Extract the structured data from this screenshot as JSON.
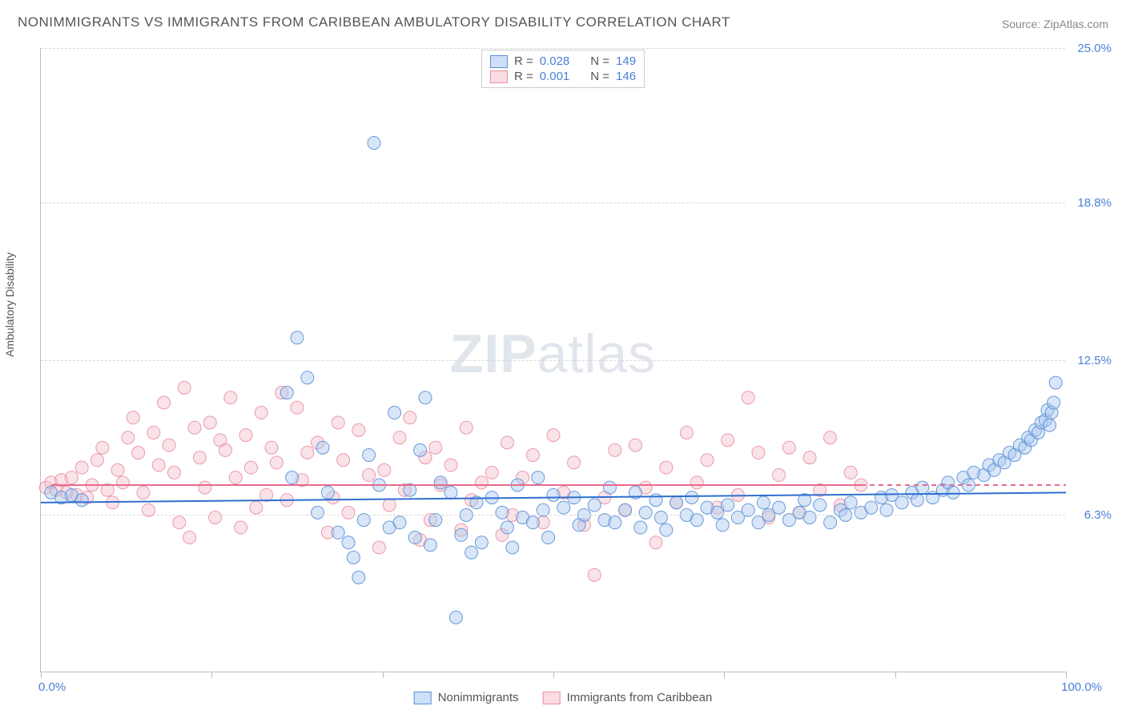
{
  "title": "NONIMMIGRANTS VS IMMIGRANTS FROM CARIBBEAN AMBULATORY DISABILITY CORRELATION CHART",
  "source": "Source: ZipAtlas.com",
  "ylabel": "Ambulatory Disability",
  "watermark_bold": "ZIP",
  "watermark_rest": "atlas",
  "chart": {
    "type": "scatter",
    "xlim": [
      0,
      100
    ],
    "ylim": [
      0,
      25
    ],
    "x_ticks": [
      0,
      16.67,
      33.33,
      50,
      66.67,
      83.33,
      100
    ],
    "y_grid": [
      6.3,
      12.5,
      18.8,
      25.0
    ],
    "y_tick_labels": [
      "6.3%",
      "12.5%",
      "18.8%",
      "25.0%"
    ],
    "x_min_label": "0.0%",
    "x_max_label": "100.0%",
    "grid_color": "#d8d8d8",
    "axis_color": "#bbbbbb",
    "background_color": "#ffffff",
    "marker_radius": 8,
    "marker_opacity": 0.45,
    "line_width": 2,
    "series": [
      {
        "name": "Nonimmigrants",
        "fill_color": "#a8c8f0",
        "stroke_color": "#5b8fd6",
        "legend_swatch_fill": "#cde0f7",
        "trend": {
          "y_start": 6.8,
          "y_end": 7.2,
          "x_start": 0,
          "x_end": 100,
          "color": "#2f6fd0",
          "dash": "none"
        },
        "R": "0.028",
        "N": "149",
        "points": [
          [
            1,
            7.2
          ],
          [
            2,
            7.0
          ],
          [
            3,
            7.1
          ],
          [
            4,
            6.9
          ],
          [
            24,
            11.2
          ],
          [
            24.5,
            7.8
          ],
          [
            25,
            13.4
          ],
          [
            26,
            11.8
          ],
          [
            27,
            6.4
          ],
          [
            27.5,
            9.0
          ],
          [
            28,
            7.2
          ],
          [
            29,
            5.6
          ],
          [
            30,
            5.2
          ],
          [
            30.5,
            4.6
          ],
          [
            31,
            3.8
          ],
          [
            31.5,
            6.1
          ],
          [
            32,
            8.7
          ],
          [
            32.5,
            21.2
          ],
          [
            33,
            7.5
          ],
          [
            34,
            5.8
          ],
          [
            34.5,
            10.4
          ],
          [
            35,
            6.0
          ],
          [
            36,
            7.3
          ],
          [
            36.5,
            5.4
          ],
          [
            37,
            8.9
          ],
          [
            37.5,
            11.0
          ],
          [
            38,
            5.1
          ],
          [
            38.5,
            6.1
          ],
          [
            39,
            7.6
          ],
          [
            40,
            7.2
          ],
          [
            40.5,
            2.2
          ],
          [
            41,
            5.5
          ],
          [
            41.5,
            6.3
          ],
          [
            42,
            4.8
          ],
          [
            42.5,
            6.8
          ],
          [
            43,
            5.2
          ],
          [
            44,
            7.0
          ],
          [
            45,
            6.4
          ],
          [
            45.5,
            5.8
          ],
          [
            46,
            5.0
          ],
          [
            46.5,
            7.5
          ],
          [
            47,
            6.2
          ],
          [
            48,
            6.0
          ],
          [
            48.5,
            7.8
          ],
          [
            49,
            6.5
          ],
          [
            49.5,
            5.4
          ],
          [
            50,
            7.1
          ],
          [
            51,
            6.6
          ],
          [
            52,
            7.0
          ],
          [
            52.5,
            5.9
          ],
          [
            53,
            6.3
          ],
          [
            54,
            6.7
          ],
          [
            55,
            6.1
          ],
          [
            55.5,
            7.4
          ],
          [
            56,
            6.0
          ],
          [
            57,
            6.5
          ],
          [
            58,
            7.2
          ],
          [
            58.5,
            5.8
          ],
          [
            59,
            6.4
          ],
          [
            60,
            6.9
          ],
          [
            60.5,
            6.2
          ],
          [
            61,
            5.7
          ],
          [
            62,
            6.8
          ],
          [
            63,
            6.3
          ],
          [
            63.5,
            7.0
          ],
          [
            64,
            6.1
          ],
          [
            65,
            6.6
          ],
          [
            66,
            6.4
          ],
          [
            66.5,
            5.9
          ],
          [
            67,
            6.7
          ],
          [
            68,
            6.2
          ],
          [
            69,
            6.5
          ],
          [
            70,
            6.0
          ],
          [
            70.5,
            6.8
          ],
          [
            71,
            6.3
          ],
          [
            72,
            6.6
          ],
          [
            73,
            6.1
          ],
          [
            74,
            6.4
          ],
          [
            74.5,
            6.9
          ],
          [
            75,
            6.2
          ],
          [
            76,
            6.7
          ],
          [
            77,
            6.0
          ],
          [
            78,
            6.5
          ],
          [
            78.5,
            6.3
          ],
          [
            79,
            6.8
          ],
          [
            80,
            6.4
          ],
          [
            81,
            6.6
          ],
          [
            82,
            7.0
          ],
          [
            82.5,
            6.5
          ],
          [
            83,
            7.1
          ],
          [
            84,
            6.8
          ],
          [
            85,
            7.2
          ],
          [
            85.5,
            6.9
          ],
          [
            86,
            7.4
          ],
          [
            87,
            7.0
          ],
          [
            88,
            7.3
          ],
          [
            88.5,
            7.6
          ],
          [
            89,
            7.2
          ],
          [
            90,
            7.8
          ],
          [
            90.5,
            7.5
          ],
          [
            91,
            8.0
          ],
          [
            92,
            7.9
          ],
          [
            92.5,
            8.3
          ],
          [
            93,
            8.1
          ],
          [
            93.5,
            8.5
          ],
          [
            94,
            8.4
          ],
          [
            94.5,
            8.8
          ],
          [
            95,
            8.7
          ],
          [
            95.5,
            9.1
          ],
          [
            96,
            9.0
          ],
          [
            96.3,
            9.4
          ],
          [
            96.6,
            9.3
          ],
          [
            97,
            9.7
          ],
          [
            97.3,
            9.6
          ],
          [
            97.6,
            10.0
          ],
          [
            98,
            10.1
          ],
          [
            98.2,
            10.5
          ],
          [
            98.4,
            9.9
          ],
          [
            98.6,
            10.4
          ],
          [
            98.8,
            10.8
          ],
          [
            99,
            11.6
          ]
        ]
      },
      {
        "name": "Immigrants from Caribbean",
        "fill_color": "#f5c2cc",
        "stroke_color": "#e88fa3",
        "legend_swatch_fill": "#fadce2",
        "trend_solid": {
          "y_start": 7.5,
          "y_end": 7.5,
          "x_start": 1,
          "x_end": 80,
          "color": "#e86a8c"
        },
        "trend_dashed": {
          "y_start": 7.5,
          "y_end": 7.5,
          "x_start": 80,
          "x_end": 100,
          "color": "#e86a8c"
        },
        "R": "0.001",
        "N": "146",
        "points": [
          [
            0.5,
            7.4
          ],
          [
            1,
            7.6
          ],
          [
            1.5,
            7.3
          ],
          [
            2,
            7.7
          ],
          [
            2.5,
            7.2
          ],
          [
            3,
            7.8
          ],
          [
            3.5,
            7.1
          ],
          [
            4,
            8.2
          ],
          [
            4.5,
            7.0
          ],
          [
            5,
            7.5
          ],
          [
            5.5,
            8.5
          ],
          [
            6,
            9.0
          ],
          [
            6.5,
            7.3
          ],
          [
            7,
            6.8
          ],
          [
            7.5,
            8.1
          ],
          [
            8,
            7.6
          ],
          [
            8.5,
            9.4
          ],
          [
            9,
            10.2
          ],
          [
            9.5,
            8.8
          ],
          [
            10,
            7.2
          ],
          [
            10.5,
            6.5
          ],
          [
            11,
            9.6
          ],
          [
            11.5,
            8.3
          ],
          [
            12,
            10.8
          ],
          [
            12.5,
            9.1
          ],
          [
            13,
            8.0
          ],
          [
            13.5,
            6.0
          ],
          [
            14,
            11.4
          ],
          [
            14.5,
            5.4
          ],
          [
            15,
            9.8
          ],
          [
            15.5,
            8.6
          ],
          [
            16,
            7.4
          ],
          [
            16.5,
            10.0
          ],
          [
            17,
            6.2
          ],
          [
            17.5,
            9.3
          ],
          [
            18,
            8.9
          ],
          [
            18.5,
            11.0
          ],
          [
            19,
            7.8
          ],
          [
            19.5,
            5.8
          ],
          [
            20,
            9.5
          ],
          [
            20.5,
            8.2
          ],
          [
            21,
            6.6
          ],
          [
            21.5,
            10.4
          ],
          [
            22,
            7.1
          ],
          [
            22.5,
            9.0
          ],
          [
            23,
            8.4
          ],
          [
            23.5,
            11.2
          ],
          [
            24,
            6.9
          ],
          [
            25,
            10.6
          ],
          [
            25.5,
            7.7
          ],
          [
            26,
            8.8
          ],
          [
            27,
            9.2
          ],
          [
            28,
            5.6
          ],
          [
            28.5,
            7.0
          ],
          [
            29,
            10.0
          ],
          [
            29.5,
            8.5
          ],
          [
            30,
            6.4
          ],
          [
            31,
            9.7
          ],
          [
            32,
            7.9
          ],
          [
            33,
            5.0
          ],
          [
            33.5,
            8.1
          ],
          [
            34,
            6.7
          ],
          [
            35,
            9.4
          ],
          [
            35.5,
            7.3
          ],
          [
            36,
            10.2
          ],
          [
            37,
            5.3
          ],
          [
            37.5,
            8.6
          ],
          [
            38,
            6.1
          ],
          [
            38.5,
            9.0
          ],
          [
            39,
            7.5
          ],
          [
            40,
            8.3
          ],
          [
            41,
            5.7
          ],
          [
            41.5,
            9.8
          ],
          [
            42,
            6.9
          ],
          [
            43,
            7.6
          ],
          [
            44,
            8.0
          ],
          [
            45,
            5.5
          ],
          [
            45.5,
            9.2
          ],
          [
            46,
            6.3
          ],
          [
            47,
            7.8
          ],
          [
            48,
            8.7
          ],
          [
            49,
            6.0
          ],
          [
            50,
            9.5
          ],
          [
            51,
            7.2
          ],
          [
            52,
            8.4
          ],
          [
            53,
            5.9
          ],
          [
            54,
            3.9
          ],
          [
            55,
            7.0
          ],
          [
            56,
            8.9
          ],
          [
            57,
            6.5
          ],
          [
            58,
            9.1
          ],
          [
            59,
            7.4
          ],
          [
            60,
            5.2
          ],
          [
            61,
            8.2
          ],
          [
            62,
            6.8
          ],
          [
            63,
            9.6
          ],
          [
            64,
            7.6
          ],
          [
            65,
            8.5
          ],
          [
            66,
            6.6
          ],
          [
            67,
            9.3
          ],
          [
            68,
            7.1
          ],
          [
            69,
            11.0
          ],
          [
            70,
            8.8
          ],
          [
            71,
            6.2
          ],
          [
            72,
            7.9
          ],
          [
            73,
            9.0
          ],
          [
            74,
            6.4
          ],
          [
            75,
            8.6
          ],
          [
            76,
            7.3
          ],
          [
            77,
            9.4
          ],
          [
            78,
            6.7
          ],
          [
            79,
            8.0
          ],
          [
            80,
            7.5
          ]
        ]
      }
    ]
  },
  "legend_bottom": {
    "series1_label": "Nonimmigrants",
    "series2_label": "Immigrants from Caribbean"
  },
  "legend_top": {
    "r_label": "R =",
    "n_label": "N ="
  }
}
